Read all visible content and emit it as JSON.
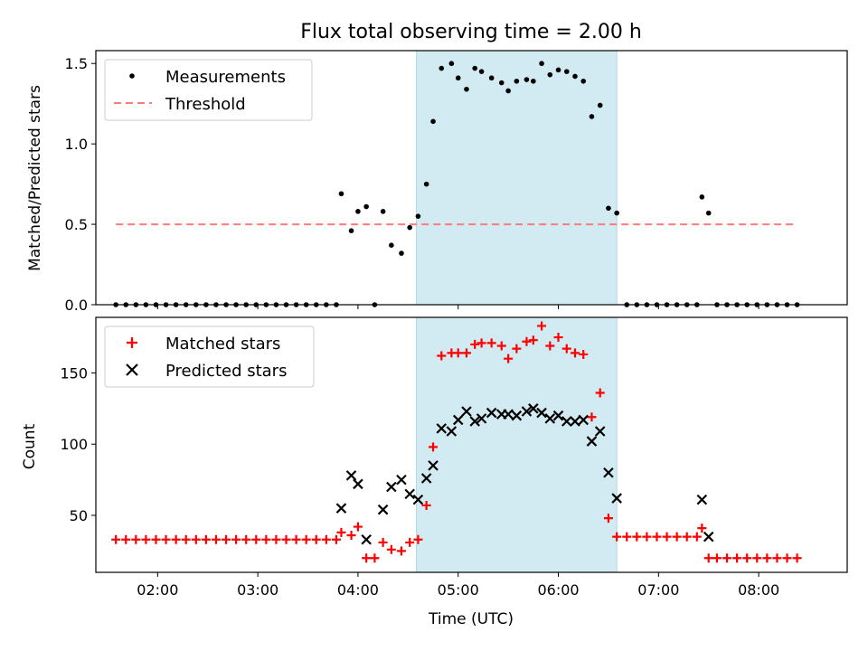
{
  "chart_data": [
    {
      "type": "scatter",
      "title": "Flux total observing time = 2.00 h",
      "ylabel": "Matched/Predicted stars",
      "xlabel": "",
      "xlim": [
        "01:23",
        "08:53"
      ],
      "ylim": [
        0,
        1.58
      ],
      "yticks": [
        "0.0",
        "0.5",
        "1.0",
        "1.5"
      ],
      "highlight_span": [
        "04:35",
        "06:35"
      ],
      "legend_position": "top-left",
      "series": [
        {
          "name": "Measurements",
          "style": "dot",
          "color": "#000000",
          "points": [
            [
              "01:35",
              0
            ],
            [
              "01:41",
              0
            ],
            [
              "01:47",
              0
            ],
            [
              "01:53",
              0
            ],
            [
              "01:59",
              0
            ],
            [
              "02:05",
              0
            ],
            [
              "02:11",
              0
            ],
            [
              "02:17",
              0
            ],
            [
              "02:23",
              0
            ],
            [
              "02:29",
              0
            ],
            [
              "02:35",
              0
            ],
            [
              "02:41",
              0
            ],
            [
              "02:47",
              0
            ],
            [
              "02:53",
              0
            ],
            [
              "02:59",
              0
            ],
            [
              "03:05",
              0
            ],
            [
              "03:11",
              0
            ],
            [
              "03:17",
              0
            ],
            [
              "03:23",
              0
            ],
            [
              "03:29",
              0
            ],
            [
              "03:35",
              0
            ],
            [
              "03:41",
              0
            ],
            [
              "03:47",
              0
            ],
            [
              "03:50",
              0.69
            ],
            [
              "03:56",
              0.46
            ],
            [
              "04:00",
              0.58
            ],
            [
              "04:05",
              0.61
            ],
            [
              "04:10",
              0.0
            ],
            [
              "04:15",
              0.58
            ],
            [
              "04:20",
              0.37
            ],
            [
              "04:26",
              0.32
            ],
            [
              "04:31",
              0.48
            ],
            [
              "04:36",
              0.55
            ],
            [
              "04:41",
              0.75
            ],
            [
              "04:45",
              1.14
            ],
            [
              "04:50",
              1.47
            ],
            [
              "04:56",
              1.5
            ],
            [
              "05:00",
              1.41
            ],
            [
              "05:05",
              1.34
            ],
            [
              "05:10",
              1.47
            ],
            [
              "05:14",
              1.45
            ],
            [
              "05:20",
              1.41
            ],
            [
              "05:26",
              1.38
            ],
            [
              "05:30",
              1.33
            ],
            [
              "05:35",
              1.39
            ],
            [
              "05:41",
              1.4
            ],
            [
              "05:45",
              1.39
            ],
            [
              "05:50",
              1.5
            ],
            [
              "05:55",
              1.43
            ],
            [
              "06:00",
              1.46
            ],
            [
              "06:05",
              1.45
            ],
            [
              "06:10",
              1.42
            ],
            [
              "06:15",
              1.39
            ],
            [
              "06:20",
              1.17
            ],
            [
              "06:25",
              1.24
            ],
            [
              "06:30",
              0.6
            ],
            [
              "06:35",
              0.57
            ],
            [
              "06:41",
              0
            ],
            [
              "06:47",
              0
            ],
            [
              "06:53",
              0
            ],
            [
              "06:59",
              0
            ],
            [
              "07:05",
              0
            ],
            [
              "07:11",
              0
            ],
            [
              "07:17",
              0
            ],
            [
              "07:23",
              0
            ],
            [
              "07:26",
              0.67
            ],
            [
              "07:30",
              0.57
            ],
            [
              "07:35",
              0
            ],
            [
              "07:41",
              0
            ],
            [
              "07:47",
              0
            ],
            [
              "07:53",
              0
            ],
            [
              "07:59",
              0
            ],
            [
              "08:05",
              0
            ],
            [
              "08:11",
              0
            ],
            [
              "08:17",
              0
            ],
            [
              "08:23",
              0
            ]
          ]
        },
        {
          "name": "Threshold",
          "style": "dashed",
          "color": "#ff7b7b",
          "points": [
            [
              "01:35",
              0.5
            ],
            [
              "08:23",
              0.5
            ]
          ]
        }
      ]
    },
    {
      "type": "scatter",
      "title": "",
      "ylabel": "Count",
      "xlabel": "Time (UTC)",
      "xlim": [
        "01:23",
        "08:53"
      ],
      "ylim": [
        10,
        189
      ],
      "yticks": [
        "50",
        "100",
        "150"
      ],
      "xticks": [
        "02:00",
        "03:00",
        "04:00",
        "05:00",
        "06:00",
        "07:00",
        "08:00"
      ],
      "highlight_span": [
        "04:35",
        "06:35"
      ],
      "legend_position": "top-left",
      "series": [
        {
          "name": "Matched stars",
          "style": "plus",
          "color": "#ff0000",
          "points": [
            [
              "01:35",
              33
            ],
            [
              "01:41",
              33
            ],
            [
              "01:47",
              33
            ],
            [
              "01:53",
              33
            ],
            [
              "01:59",
              33
            ],
            [
              "02:05",
              33
            ],
            [
              "02:11",
              33
            ],
            [
              "02:17",
              33
            ],
            [
              "02:23",
              33
            ],
            [
              "02:29",
              33
            ],
            [
              "02:35",
              33
            ],
            [
              "02:41",
              33
            ],
            [
              "02:47",
              33
            ],
            [
              "02:53",
              33
            ],
            [
              "02:59",
              33
            ],
            [
              "03:05",
              33
            ],
            [
              "03:11",
              33
            ],
            [
              "03:17",
              33
            ],
            [
              "03:23",
              33
            ],
            [
              "03:29",
              33
            ],
            [
              "03:35",
              33
            ],
            [
              "03:41",
              33
            ],
            [
              "03:47",
              33
            ],
            [
              "03:50",
              38
            ],
            [
              "03:56",
              36
            ],
            [
              "04:00",
              42
            ],
            [
              "04:05",
              20
            ],
            [
              "04:10",
              20
            ],
            [
              "04:15",
              31
            ],
            [
              "04:20",
              26
            ],
            [
              "04:26",
              25
            ],
            [
              "04:31",
              31
            ],
            [
              "04:36",
              33
            ],
            [
              "04:41",
              57
            ],
            [
              "04:45",
              98
            ],
            [
              "04:50",
              162
            ],
            [
              "04:56",
              164
            ],
            [
              "05:00",
              164
            ],
            [
              "05:05",
              164
            ],
            [
              "05:10",
              170
            ],
            [
              "05:14",
              171
            ],
            [
              "05:20",
              171
            ],
            [
              "05:26",
              169
            ],
            [
              "05:30",
              160
            ],
            [
              "05:35",
              167
            ],
            [
              "05:41",
              172
            ],
            [
              "05:45",
              173
            ],
            [
              "05:50",
              183
            ],
            [
              "05:55",
              169
            ],
            [
              "06:00",
              175
            ],
            [
              "06:05",
              167
            ],
            [
              "06:10",
              164
            ],
            [
              "06:15",
              163
            ],
            [
              "06:20",
              119
            ],
            [
              "06:25",
              136
            ],
            [
              "06:30",
              48
            ],
            [
              "06:35",
              35
            ],
            [
              "06:41",
              35
            ],
            [
              "06:47",
              35
            ],
            [
              "06:53",
              35
            ],
            [
              "06:59",
              35
            ],
            [
              "07:05",
              35
            ],
            [
              "07:11",
              35
            ],
            [
              "07:17",
              35
            ],
            [
              "07:23",
              35
            ],
            [
              "07:26",
              41
            ],
            [
              "07:30",
              20
            ],
            [
              "07:35",
              20
            ],
            [
              "07:41",
              20
            ],
            [
              "07:47",
              20
            ],
            [
              "07:53",
              20
            ],
            [
              "07:59",
              20
            ],
            [
              "08:05",
              20
            ],
            [
              "08:11",
              20
            ],
            [
              "08:17",
              20
            ],
            [
              "08:23",
              20
            ]
          ]
        },
        {
          "name": "Predicted stars",
          "style": "x",
          "color": "#000000",
          "points": [
            [
              "03:50",
              55
            ],
            [
              "03:56",
              78
            ],
            [
              "04:00",
              72
            ],
            [
              "04:05",
              33
            ],
            [
              "04:15",
              54
            ],
            [
              "04:20",
              70
            ],
            [
              "04:26",
              75
            ],
            [
              "04:31",
              65
            ],
            [
              "04:36",
              61
            ],
            [
              "04:41",
              76
            ],
            [
              "04:45",
              85
            ],
            [
              "04:50",
              111
            ],
            [
              "04:56",
              109
            ],
            [
              "05:00",
              117
            ],
            [
              "05:05",
              123
            ],
            [
              "05:10",
              116
            ],
            [
              "05:14",
              118
            ],
            [
              "05:20",
              122
            ],
            [
              "05:26",
              121
            ],
            [
              "05:30",
              121
            ],
            [
              "05:35",
              120
            ],
            [
              "05:41",
              123
            ],
            [
              "05:45",
              125
            ],
            [
              "05:50",
              122
            ],
            [
              "05:55",
              118
            ],
            [
              "06:00",
              120
            ],
            [
              "06:05",
              116
            ],
            [
              "06:10",
              116
            ],
            [
              "06:15",
              117
            ],
            [
              "06:20",
              102
            ],
            [
              "06:25",
              109
            ],
            [
              "06:30",
              80
            ],
            [
              "06:35",
              62
            ],
            [
              "07:26",
              61
            ],
            [
              "07:30",
              35
            ]
          ]
        }
      ]
    }
  ],
  "colors": {
    "span_fill": "#add8e6",
    "background": "#ffffff",
    "axis": "#000000"
  }
}
